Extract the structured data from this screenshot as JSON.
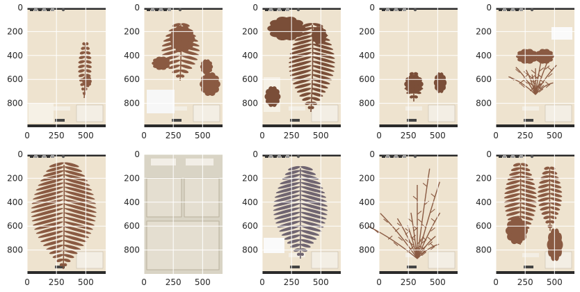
{
  "figure": {
    "grid": true,
    "panels": [
      {
        "id": "p1",
        "subject": "slender single frond with sparse leaflets",
        "specimen_color": "#8a5a42"
      },
      {
        "id": "p2",
        "subject": "large frond top and smaller clusters lower right",
        "specimen_color": "#8a5a42"
      },
      {
        "id": "p3",
        "subject": "pinnate frond with cutout fragment lower left",
        "specimen_color": "#7a4e38"
      },
      {
        "id": "p4",
        "subject": "two small fern fragments",
        "specimen_color": "#7a4e38"
      },
      {
        "id": "p5",
        "subject": "bushy branching specimen",
        "specimen_color": "#8a5a42"
      },
      {
        "id": "p6",
        "subject": "dense triangular fern",
        "specimen_color": "#8a5a42"
      },
      {
        "id": "p7",
        "subject": "sheet with folded paper packets",
        "specimen_color": "#c9c2b0"
      },
      {
        "id": "p8",
        "subject": "feathery blue-gray fern",
        "specimen_color": "#6f6470"
      },
      {
        "id": "p9",
        "subject": "thin branching twigs",
        "specimen_color": "#8a5a42"
      },
      {
        "id": "p10",
        "subject": "tall fronds in several clusters",
        "specimen_color": "#8a5a42"
      }
    ],
    "colors": {
      "paper": "#eee3cf",
      "paper_dark": "#d9c9ae",
      "border": "#2a2a2a",
      "grid": "#ffffff",
      "label": "#ffffff"
    }
  },
  "axes": {
    "x_ticks": [
      "0",
      "250",
      "500"
    ],
    "y_ticks": [
      "0",
      "200",
      "400",
      "600",
      "800"
    ],
    "x_tick_values": [
      0,
      250,
      500
    ],
    "y_tick_values": [
      0,
      200,
      400,
      600,
      800
    ],
    "x_range": [
      0,
      670
    ],
    "y_range": [
      0,
      1000
    ]
  }
}
